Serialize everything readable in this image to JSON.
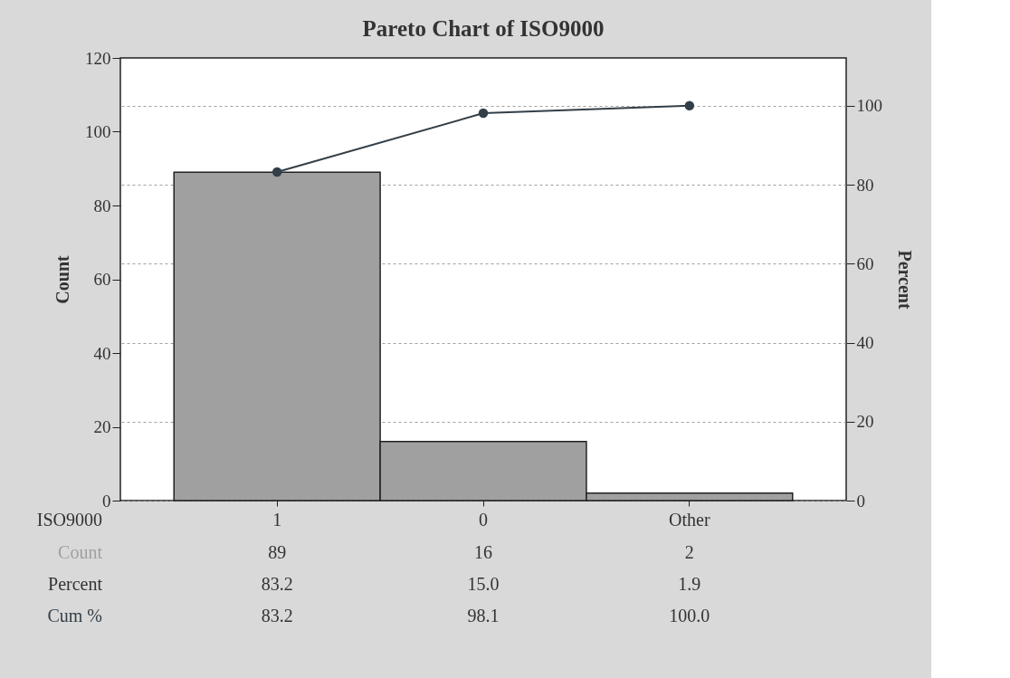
{
  "chart_data": {
    "type": "bar",
    "title": "Pareto Chart of ISO9000",
    "xlabel": "ISO9000",
    "ylabel": "Count",
    "y2label": "Percent",
    "categories": [
      "1",
      "0",
      "Other"
    ],
    "series": [
      {
        "name": "Count",
        "color": "#a0a0a0",
        "values": [
          89,
          16,
          2
        ],
        "value_labels": [
          "89",
          "16",
          "2"
        ]
      },
      {
        "name": "Cum %",
        "type": "line",
        "axis": "y2",
        "color": "#333f48",
        "marker": "circle",
        "values": [
          83.2,
          98.1,
          100.0
        ],
        "value_labels": [
          "83.2",
          "98.1",
          "100.0"
        ]
      }
    ],
    "annotations": [
      "Percent",
      "83.2",
      "15.0",
      "1.9"
    ],
    "ylim": [
      0,
      120
    ],
    "yticks": [
      0,
      20,
      40,
      60,
      80,
      100,
      120
    ],
    "y2lim": [
      0,
      112.1
    ],
    "y2ticks": [
      0,
      20,
      40,
      60,
      80,
      100
    ],
    "grid": "y2"
  }
}
